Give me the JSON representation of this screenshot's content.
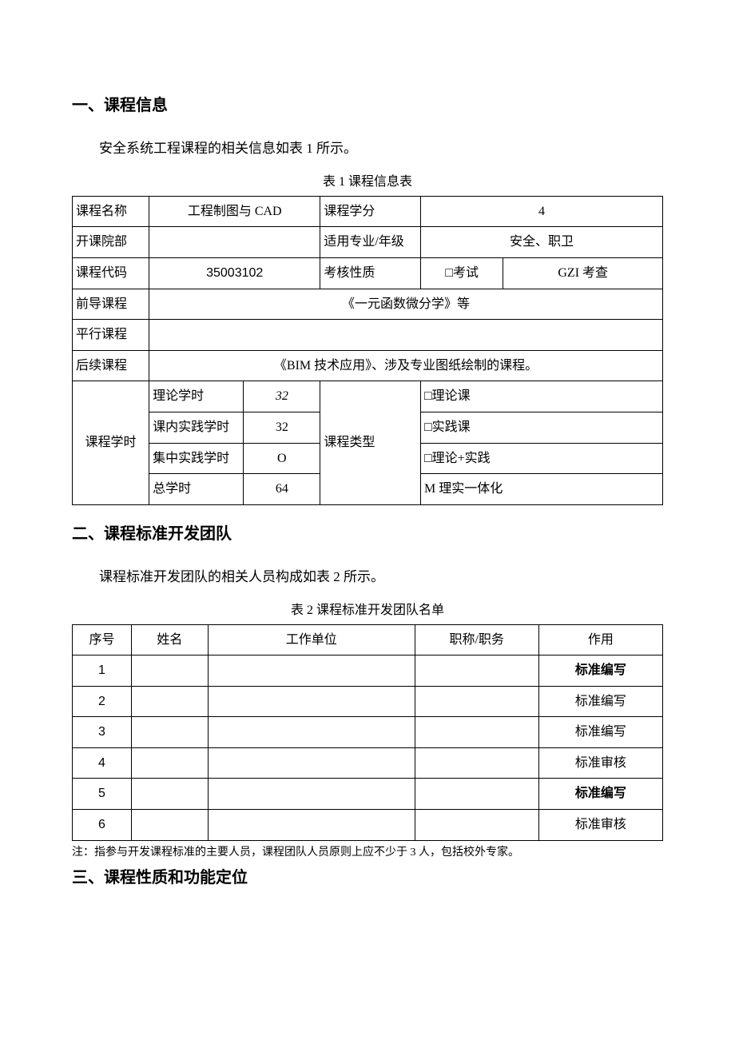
{
  "section1": {
    "heading": "一、课程信息",
    "intro": "安全系统工程课程的相关信息如表 1 所示。",
    "caption": "表 1 课程信息表"
  },
  "table1": {
    "r1": {
      "c1": "课程名称",
      "c2": "工程制图与 CAD",
      "c3": "课程学分",
      "c4": "4"
    },
    "r2": {
      "c1": "开课院部",
      "c2": "",
      "c3": "适用专业/年级",
      "c4": "安全、职卫"
    },
    "r3": {
      "c1": "课程代码",
      "c2": "35003102",
      "c3": "考核性质",
      "c4a": "□考试",
      "c4b": "GZI 考查"
    },
    "r4": {
      "c1": "前导课程",
      "c2": "《一元函数微分学》等"
    },
    "r5": {
      "c1": "平行课程",
      "c2": ""
    },
    "r6": {
      "c1": "后续课程",
      "c2": "《BIM 技术应用》、涉及专业图纸绘制的课程。"
    },
    "hours": {
      "label": "课程学时",
      "typelabel": "课程类型",
      "rows": [
        {
          "a": "理论学时",
          "b": "32",
          "d": "□理论课",
          "italic": true
        },
        {
          "a": "课内实践学时",
          "b": "32",
          "d": "□实践课"
        },
        {
          "a": "集中实践学时",
          "b": "O",
          "d": "□理论+实践"
        },
        {
          "a": "总学时",
          "b": "64",
          "d": "M 理实一体化"
        }
      ]
    }
  },
  "section2": {
    "heading": "二、课程标准开发团队",
    "intro": "课程标准开发团队的相关人员构成如表 2 所示。",
    "caption": "表 2 课程标准开发团队名单"
  },
  "table2": {
    "headers": [
      "序号",
      "姓名",
      "工作单位",
      "职称/职务",
      "作用"
    ],
    "rows": [
      {
        "idx": "1",
        "name": "",
        "unit": "",
        "title": "",
        "role": "标准编写",
        "bold": true
      },
      {
        "idx": "2",
        "name": "",
        "unit": "",
        "title": "",
        "role": "标准编写",
        "bold": false
      },
      {
        "idx": "3",
        "name": "",
        "unit": "",
        "title": "",
        "role": "标准编写",
        "bold": false
      },
      {
        "idx": "4",
        "name": "",
        "unit": "",
        "title": "",
        "role": "标准审核",
        "bold": false
      },
      {
        "idx": "5",
        "name": "",
        "unit": "",
        "title": "",
        "role": "标准编写",
        "bold": true
      },
      {
        "idx": "6",
        "name": "",
        "unit": "",
        "title": "",
        "role": "标准审核",
        "bold": false
      }
    ],
    "note": "注：指参与开发课程标准的主要人员，课程团队人员原则上应不少于 3 人，包括校外专家。"
  },
  "section3": {
    "heading": "三、课程性质和功能定位"
  },
  "cols": {
    "t1": {
      "c1": 13,
      "c2a": 16,
      "c2b": 13,
      "c3": 17,
      "c4a": 14,
      "c4b": 27
    },
    "t2": {
      "idx": 10,
      "name": 13,
      "unit": 35,
      "title": 21,
      "role": 21
    }
  }
}
